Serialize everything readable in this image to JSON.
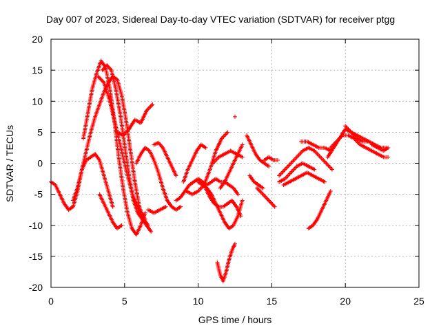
{
  "chart_data": {
    "type": "scatter",
    "title": "Day 007 of 2023, Sidereal Day-to-day VTEC variation (SDTVAR) for receiver ptgg",
    "xlabel": "GPS time / hours",
    "ylabel": "SDTVAR / TECUs",
    "xlim": [
      0,
      25
    ],
    "ylim": [
      -20,
      20
    ],
    "xticks": [
      "0",
      "5",
      "10",
      "15",
      "20",
      "25"
    ],
    "yticks": [
      "-20",
      "-15",
      "-10",
      "-5",
      "0",
      "5",
      "10",
      "15",
      "20"
    ],
    "grid": true,
    "marker": "plus",
    "color": "#ff0000",
    "series": [
      {
        "x": [
          0.0,
          0.3,
          0.6,
          0.9,
          1.2,
          1.5,
          1.8,
          2.1,
          2.4,
          2.7,
          3.0,
          3.3,
          3.6,
          3.9,
          4.2,
          4.5,
          4.8,
          5.1,
          5.4,
          5.7,
          6.0,
          6.3,
          6.6
        ],
        "y": [
          -3.0,
          -3.5,
          -5.0,
          -6.5,
          -7.5,
          -7.0,
          -4.5,
          -1.0,
          2.0,
          5.0,
          7.5,
          9.5,
          11.5,
          13.0,
          14.0,
          13.5,
          11.0,
          7.0,
          2.0,
          -3.0,
          -7.0,
          -9.0,
          -10.0
        ]
      },
      {
        "x": [
          2.2,
          2.5,
          2.8,
          3.1,
          3.4,
          3.7,
          4.0,
          4.3,
          4.6,
          4.9,
          5.2,
          5.5,
          5.8,
          6.1,
          6.4
        ],
        "y": [
          4.0,
          8.0,
          12.0,
          14.5,
          16.5,
          15.5,
          12.0,
          7.0,
          1.0,
          -4.0,
          -8.0,
          -10.5,
          -11.5,
          -10.0,
          -8.0
        ]
      },
      {
        "x": [
          3.5,
          3.8,
          4.1,
          4.4,
          4.7,
          5.0,
          5.3,
          5.6,
          5.9,
          6.2,
          6.5,
          6.8
        ],
        "y": [
          15.0,
          15.8,
          15.0,
          12.0,
          8.0,
          3.0,
          -2.0,
          -6.0,
          -8.0,
          -9.0,
          -10.0,
          -11.0
        ]
      },
      {
        "x": [
          3.2,
          3.6,
          4.0,
          4.4,
          4.8,
          5.2,
          5.6,
          6.0,
          6.4
        ],
        "y": [
          14.0,
          13.0,
          10.0,
          6.0,
          2.0,
          -2.0,
          -5.5,
          -7.5,
          -9.0
        ]
      },
      {
        "x": [
          1.5,
          1.8,
          2.1,
          2.4,
          2.7,
          3.0,
          3.3,
          3.6,
          3.9,
          4.2
        ],
        "y": [
          -6.0,
          -4.0,
          -1.0,
          0.5,
          1.0,
          1.5,
          0.5,
          -2.0,
          -4.5,
          -7.0
        ]
      },
      {
        "x": [
          4.5,
          4.9,
          5.3,
          5.7,
          6.1,
          6.5,
          6.9
        ],
        "y": [
          5.0,
          4.5,
          5.5,
          7.0,
          6.5,
          8.5,
          9.5
        ]
      },
      {
        "x": [
          3.3,
          3.6,
          3.9,
          4.2,
          4.5,
          4.8
        ],
        "y": [
          -5.0,
          -6.5,
          -8.0,
          -9.5,
          -10.5,
          -10.0
        ]
      },
      {
        "x": [
          5.8,
          6.1,
          6.4,
          6.7,
          7.0,
          7.3,
          7.6,
          7.9,
          8.2,
          8.5,
          8.8
        ],
        "y": [
          0.0,
          1.5,
          2.5,
          2.0,
          0.5,
          -1.5,
          -4.0,
          -6.0,
          -7.0,
          -7.5,
          -7.0
        ]
      },
      {
        "x": [
          7.0,
          7.3,
          7.6,
          7.9,
          8.2,
          8.5
        ],
        "y": [
          3.0,
          3.3,
          2.5,
          1.0,
          -0.5,
          -2.0
        ]
      },
      {
        "x": [
          6.6,
          7.0,
          7.4,
          7.8
        ],
        "y": [
          -7.5,
          -8.0,
          -7.5,
          -7.0
        ]
      },
      {
        "x": [
          8.5,
          8.8,
          9.1,
          9.4,
          9.7,
          10.0,
          10.3,
          10.6,
          10.9,
          11.2,
          11.5,
          11.8,
          12.1,
          12.4,
          12.7
        ],
        "y": [
          -6.0,
          -5.5,
          -4.5,
          -3.5,
          -3.0,
          -2.5,
          -3.0,
          -3.5,
          -3.0,
          -2.5,
          -3.0,
          -3.0,
          -3.5,
          -4.0,
          -5.0
        ]
      },
      {
        "x": [
          9.0,
          9.3,
          9.6,
          9.9,
          10.2,
          10.5
        ],
        "y": [
          -3.0,
          -1.0,
          0.5,
          2.0,
          3.0,
          2.5
        ]
      },
      {
        "x": [
          9.2,
          9.6,
          10.0,
          10.4,
          10.8,
          11.2,
          11.6,
          12.0
        ],
        "y": [
          -4.5,
          -5.0,
          -4.5,
          -3.5,
          -1.0,
          2.0,
          4.0,
          5.0
        ]
      },
      {
        "x": [
          10.0,
          10.3,
          10.6,
          10.9,
          11.2,
          11.5,
          11.8,
          12.1,
          12.4,
          12.7,
          13.0
        ],
        "y": [
          -3.0,
          -3.5,
          -4.0,
          -5.0,
          -6.5,
          -8.0,
          -9.5,
          -10.5,
          -10.0,
          -8.5,
          -6.0
        ]
      },
      {
        "x": [
          10.5,
          10.8,
          11.1,
          11.4,
          11.7,
          12.0,
          12.3,
          12.6,
          12.9
        ],
        "y": [
          -4.0,
          -5.5,
          -6.5,
          -7.0,
          -7.0,
          -6.5,
          -6.0,
          -7.0,
          -8.5
        ]
      },
      {
        "x": [
          11.0,
          11.4,
          11.8,
          12.2,
          12.6,
          13.0
        ],
        "y": [
          0.0,
          1.0,
          1.5,
          2.0,
          1.5,
          1.0
        ]
      },
      {
        "x": [
          11.5,
          11.8,
          12.1,
          12.4,
          12.7,
          13.0
        ],
        "y": [
          -4.0,
          -3.0,
          -1.5,
          0.0,
          1.5,
          3.0
        ]
      },
      {
        "x": [
          11.3,
          11.5,
          11.7,
          11.9,
          12.1,
          12.3,
          12.5
        ],
        "y": [
          -16.0,
          -18.0,
          -19.0,
          -17.5,
          -15.5,
          -14.0,
          -13.0
        ]
      },
      {
        "x": [
          12.5
        ],
        "y": [
          7.5
        ]
      },
      {
        "x": [
          13.3,
          13.6,
          13.9,
          14.2,
          14.5,
          14.8
        ],
        "y": [
          4.5,
          3.0,
          1.5,
          0.5,
          0.0,
          -0.5
        ]
      },
      {
        "x": [
          13.5,
          13.8,
          14.1,
          14.4
        ],
        "y": [
          -2.0,
          -3.0,
          -3.5,
          -4.0
        ]
      },
      {
        "x": [
          14.0,
          14.4,
          14.8,
          15.2
        ],
        "y": [
          -4.0,
          -5.0,
          -6.0,
          -7.0
        ]
      },
      {
        "x": [
          14.5,
          14.8,
          15.1,
          15.4
        ],
        "y": [
          0.5,
          1.0,
          0.5,
          0.5
        ]
      },
      {
        "x": [
          15.5,
          15.9,
          16.3,
          16.7,
          17.1,
          17.5,
          17.9,
          18.3,
          18.7,
          19.1
        ],
        "y": [
          -2.0,
          -1.0,
          0.0,
          1.0,
          2.0,
          2.5,
          2.0,
          1.0,
          0.0,
          -1.0
        ]
      },
      {
        "x": [
          15.5,
          15.9,
          16.3,
          16.7,
          17.1,
          17.5,
          17.9
        ],
        "y": [
          -3.0,
          -2.5,
          -1.5,
          -0.5,
          0.0,
          -0.5,
          -1.0
        ]
      },
      {
        "x": [
          15.8,
          16.2,
          16.6,
          17.0,
          17.4,
          17.8,
          18.2,
          18.6
        ],
        "y": [
          -3.5,
          -3.0,
          -2.5,
          -2.0,
          -1.5,
          -2.0,
          -2.5,
          -3.0
        ]
      },
      {
        "x": [
          17.0,
          17.4,
          17.8,
          18.2,
          18.6,
          19.0
        ],
        "y": [
          3.5,
          3.5,
          3.0,
          2.5,
          2.5,
          2.0
        ]
      },
      {
        "x": [
          17.5,
          17.8,
          18.1,
          18.4,
          18.7,
          19.0
        ],
        "y": [
          -10.5,
          -10.0,
          -9.0,
          -7.5,
          -6.0,
          -4.5
        ]
      },
      {
        "x": [
          18.8,
          19.2,
          19.6,
          20.0,
          20.4,
          20.8,
          21.2,
          21.6
        ],
        "y": [
          1.0,
          2.5,
          4.0,
          5.5,
          5.0,
          4.0,
          3.5,
          3.5
        ]
      },
      {
        "x": [
          19.0,
          19.4,
          19.8,
          20.2,
          20.6,
          21.0,
          21.4,
          21.8,
          22.2,
          22.6,
          22.9
        ],
        "y": [
          2.5,
          3.5,
          4.5,
          4.5,
          4.0,
          3.0,
          2.5,
          2.0,
          1.5,
          1.0,
          1.0
        ]
      },
      {
        "x": [
          20.0,
          20.4,
          20.8,
          21.2,
          21.6,
          22.0,
          22.4,
          22.8
        ],
        "y": [
          6.0,
          5.0,
          4.5,
          4.0,
          3.5,
          3.0,
          2.5,
          2.5
        ]
      },
      {
        "x": [
          21.8,
          22.2,
          22.6,
          22.9
        ],
        "y": [
          3.0,
          2.5,
          2.0,
          2.5
        ]
      }
    ]
  }
}
